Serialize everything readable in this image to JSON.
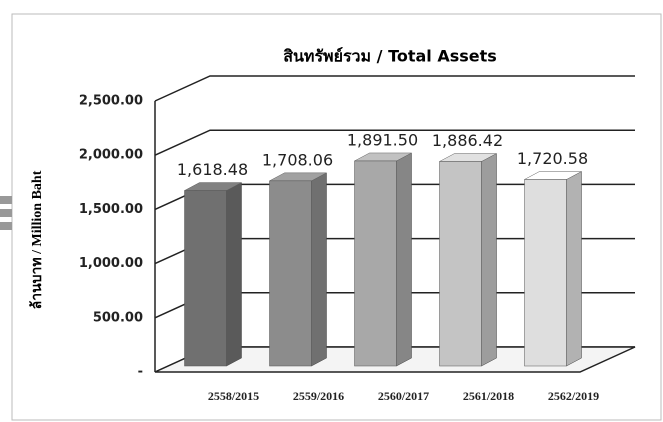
{
  "chart_data": {
    "type": "bar3d",
    "title": "สินทรัพย์รวม / Total Assets",
    "y_label": "ล้านบาท / Million Baht",
    "categories": [
      "2558/2015",
      "2559/2016",
      "2560/2017",
      "2561/2018",
      "2562/2019"
    ],
    "values": [
      1618.48,
      1708.06,
      1891.5,
      1886.42,
      1720.58
    ],
    "value_labels": [
      "1,618.48",
      "1,708.06",
      "1,891.50",
      "1,886.42",
      "1,720.58"
    ],
    "colors": [
      "#707070",
      "#8c8c8c",
      "#a8a8a8",
      "#c4c4c4",
      "#dedede"
    ],
    "ylim": [
      0,
      2500
    ],
    "yticks": [
      {
        "value": 0,
        "label": "-"
      },
      {
        "value": 500,
        "label": "500.00"
      },
      {
        "value": 1000,
        "label": "1,000.00"
      },
      {
        "value": 1500,
        "label": "1,500.00"
      },
      {
        "value": 2000,
        "label": "2,000.00"
      },
      {
        "value": 2500,
        "label": "2,500.00"
      }
    ],
    "grid": true
  }
}
